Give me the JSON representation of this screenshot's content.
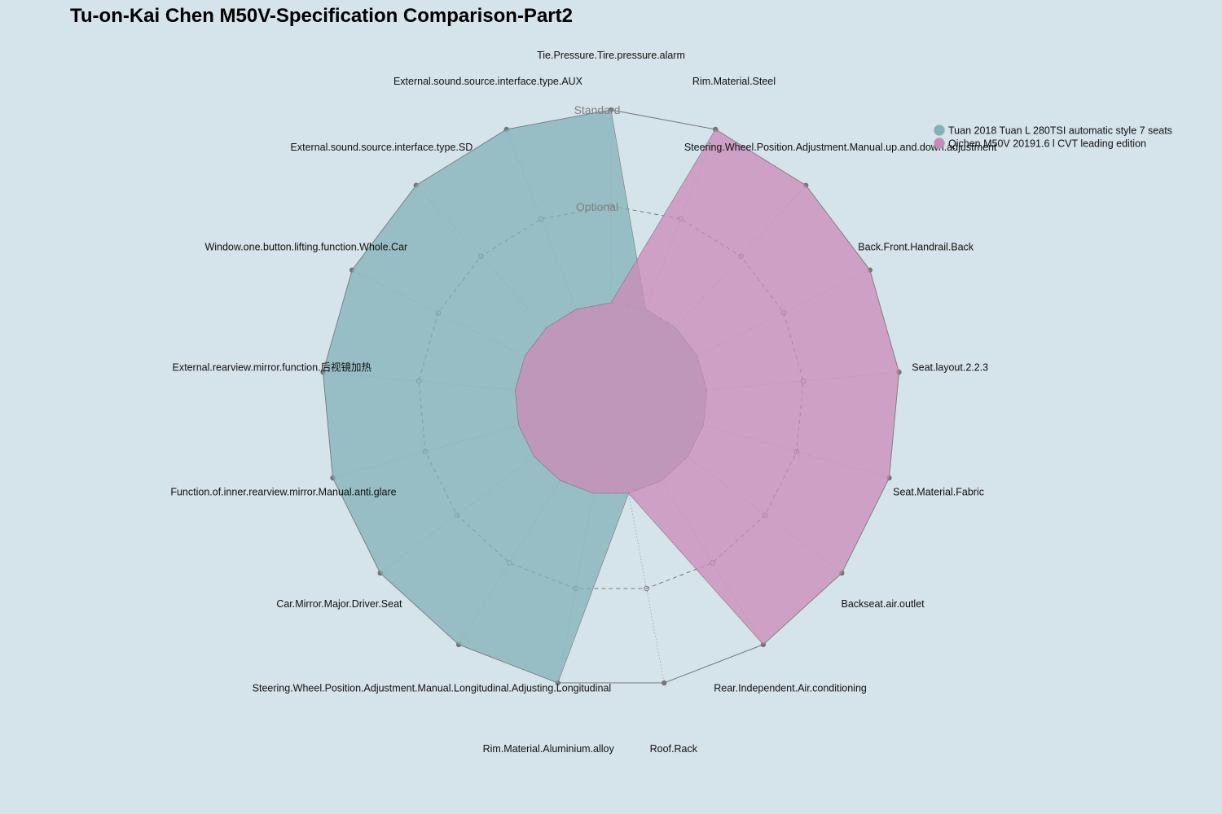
{
  "chart_data": {
    "type": "radar",
    "title": "Tu-on-Kai Chen M50V-Specification Comparison-Part2",
    "levels": [
      "Standard",
      "Optional"
    ],
    "axes": [
      "Tie.Pressure.Tire.pressure.alarm",
      "Rim.Material.Steel",
      "Steering.Wheel.Position.Adjustment.Manual.up.and.down.adjustment",
      "Back.Front.Handrail.Back",
      "Seat.layout.2.2.3",
      "Seat.Material.Fabric",
      "Backseat.air.outlet",
      "Rear.Independent.Air.conditioning",
      "Roof.Rack",
      "Rim.Material.Aluminium.alloy",
      "Steering.Wheel.Position.Adjustment.Manual.Longitudinal.Adjusting.Longitudinal",
      "Car.Mirror.Major.Driver.Seat",
      "Function.of.inner.rearview.mirror.Manual.anti.glare",
      "External.rearview.mirror.function.后视镜加热",
      "Window.one.button.lifting.function.Whole.Car",
      "External.sound.source.interface.type.SD",
      "External.sound.source.interface.type.AUX"
    ],
    "series": [
      {
        "name": "Tuan 2018 Tuan L 280TSI automatic style 7 seats",
        "color": "#80b1b7",
        "values": [
          1,
          0,
          0,
          0,
          0,
          0,
          0,
          0,
          0,
          1,
          1,
          1,
          1,
          1,
          1,
          1,
          1
        ]
      },
      {
        "name": "Qichen M50V 20191.6 l CVT leading edition",
        "color": "#cc89b8",
        "values": [
          0,
          1,
          1,
          1,
          1,
          1,
          1,
          1,
          0,
          0,
          0,
          0,
          0,
          0,
          0,
          0,
          0
        ]
      }
    ],
    "legend_position": "top-right"
  }
}
